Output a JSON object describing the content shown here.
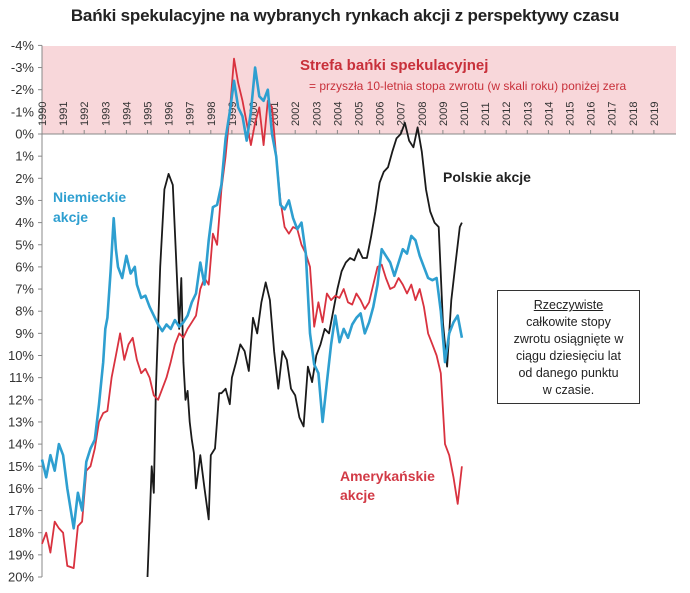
{
  "title": "Bańki spekulacyjne na wybranych rynkach akcji z perspektywy czasu",
  "zone": {
    "title": "Strefa bańki spekulacyjnej",
    "subtitle": "= przyszła  10-letnia stopa zwrotu (w skali roku) poniżej zera",
    "color": "#f8d7da"
  },
  "labels": {
    "german": "Niemieckie",
    "german2": "akcje",
    "american": "Amerykańskie",
    "american2": "akcje",
    "polish": "Polskie akcje"
  },
  "note": {
    "line1": "Rzeczywiste",
    "line2": "całkowite stopy",
    "line3": "zwrotu osiągnięte w",
    "line4": "ciągu dziesięciu  lat",
    "line5": "od danego punktu",
    "line6": "w czasie."
  },
  "colors": {
    "german": "#2e9fd0",
    "american": "#d9323f",
    "polish": "#1a1a1a"
  },
  "chart_data": {
    "type": "line",
    "title": "Bańki spekulacyjne na wybranych rynkach akcji z perspektywy czasu",
    "xlabel": "",
    "ylabel": "",
    "y_inverted": true,
    "ylim": [
      -4,
      20
    ],
    "xlim": [
      1990,
      2019
    ],
    "yticks": [
      "-4%",
      "-3%",
      "-2%",
      "-1%",
      "0%",
      "1%",
      "2%",
      "3%",
      "4%",
      "5%",
      "6%",
      "7%",
      "8%",
      "9%",
      "10%",
      "11%",
      "12%",
      "13%",
      "14%",
      "15%",
      "16%",
      "17%",
      "18%",
      "19%",
      "20%"
    ],
    "xticks": [
      "1990",
      "1991",
      "1992",
      "1993",
      "1994",
      "1995",
      "1996",
      "1997",
      "1998",
      "1999",
      "2000",
      "2001",
      "2002",
      "2003",
      "2004",
      "2005",
      "2006",
      "2007",
      "2008",
      "2009",
      "2010",
      "2011",
      "2012",
      "2013",
      "2014",
      "2015",
      "2016",
      "2017",
      "2018",
      "2019"
    ],
    "shaded_region": {
      "from": -4,
      "to": 0,
      "label": "Strefa bańki spekulacyjnej"
    },
    "series": [
      {
        "name": "Niemieckie akcje",
        "x": [
          1990.0,
          1990.2,
          1990.4,
          1990.6,
          1990.8,
          1991.0,
          1991.2,
          1991.5,
          1991.7,
          1991.9,
          1992.1,
          1992.3,
          1992.5,
          1992.7,
          1992.9,
          1993.0,
          1993.1,
          1993.25,
          1993.4,
          1993.5,
          1993.6,
          1993.8,
          1994.0,
          1994.2,
          1994.4,
          1994.5,
          1994.7,
          1994.9,
          1995.1,
          1995.3,
          1995.5,
          1995.7,
          1995.9,
          1996.1,
          1996.3,
          1996.5,
          1996.7,
          1996.9,
          1997.1,
          1997.3,
          1997.5,
          1997.7,
          1997.9,
          1998.1,
          1998.3,
          1998.5,
          1998.7,
          1998.9,
          1999.1,
          1999.3,
          1999.5,
          1999.7,
          1999.9,
          2000.1,
          2000.3,
          2000.5,
          2000.7,
          2000.9,
          2001.1,
          2001.3,
          2001.5,
          2001.7,
          2001.9,
          2002.1,
          2002.3,
          2002.5,
          2002.7,
          2002.9,
          2003.1,
          2003.3,
          2003.5,
          2003.7,
          2003.9,
          2004.1,
          2004.3,
          2004.5,
          2004.7,
          2004.9,
          2005.1,
          2005.3,
          2005.5,
          2005.7,
          2005.9,
          2006.1,
          2006.3,
          2006.5,
          2006.7,
          2006.9,
          2007.1,
          2007.3,
          2007.5,
          2007.7,
          2007.9,
          2008.1,
          2008.3,
          2008.5,
          2008.7,
          2008.9,
          2009.1,
          2009.3,
          2009.5,
          2009.7,
          2009.9
        ],
        "values": [
          14.7,
          15.5,
          14.5,
          15.2,
          14.0,
          14.5,
          16.0,
          17.8,
          16.2,
          17.0,
          14.8,
          14.2,
          13.8,
          12.2,
          10.3,
          8.8,
          8.3,
          6.2,
          3.8,
          5.2,
          6.0,
          6.5,
          5.5,
          6.3,
          6.0,
          6.8,
          7.4,
          7.3,
          7.8,
          8.2,
          8.6,
          8.9,
          8.6,
          8.8,
          8.4,
          8.7,
          8.5,
          8.2,
          7.6,
          7.2,
          5.8,
          6.8,
          4.8,
          3.3,
          3.2,
          2.3,
          0.2,
          -1.0,
          -2.4,
          -1.2,
          -0.8,
          0.3,
          -1.0,
          -3.0,
          -1.7,
          -1.5,
          -2.0,
          0.0,
          1.0,
          3.2,
          3.4,
          3.0,
          3.8,
          4.3,
          4.0,
          5.4,
          9.0,
          10.4,
          10.8,
          13.0,
          11.2,
          9.5,
          8.2,
          9.4,
          8.8,
          9.2,
          8.6,
          8.3,
          8.1,
          9.0,
          8.5,
          7.8,
          6.8,
          5.2,
          5.5,
          5.8,
          6.4,
          5.8,
          5.2,
          5.4,
          4.6,
          4.8,
          5.5,
          6.0,
          6.5,
          6.6,
          6.5,
          8.0,
          10.3,
          9.0,
          8.5,
          8.2,
          9.2
        ]
      },
      {
        "name": "Amerykańskie akcje",
        "x": [
          1990.0,
          1990.2,
          1990.4,
          1990.6,
          1990.8,
          1991.0,
          1991.2,
          1991.5,
          1991.7,
          1991.9,
          1992.1,
          1992.3,
          1992.5,
          1992.7,
          1992.9,
          1993.1,
          1993.3,
          1993.5,
          1993.7,
          1993.9,
          1994.1,
          1994.3,
          1994.5,
          1994.7,
          1994.9,
          1995.1,
          1995.3,
          1995.5,
          1995.7,
          1995.9,
          1996.1,
          1996.3,
          1996.5,
          1996.7,
          1996.9,
          1997.1,
          1997.3,
          1997.5,
          1997.7,
          1997.9,
          1998.1,
          1998.3,
          1998.5,
          1998.7,
          1998.9,
          1999.1,
          1999.3,
          1999.5,
          1999.7,
          1999.9,
          2000.1,
          2000.3,
          2000.5,
          2000.7,
          2000.9,
          2001.1,
          2001.3,
          2001.5,
          2001.7,
          2001.9,
          2002.1,
          2002.3,
          2002.5,
          2002.7,
          2002.9,
          2003.1,
          2003.3,
          2003.5,
          2003.7,
          2003.9,
          2004.1,
          2004.3,
          2004.5,
          2004.7,
          2004.9,
          2005.1,
          2005.3,
          2005.5,
          2005.7,
          2005.9,
          2006.1,
          2006.3,
          2006.5,
          2006.7,
          2006.9,
          2007.1,
          2007.3,
          2007.5,
          2007.7,
          2007.9,
          2008.1,
          2008.3,
          2008.5,
          2008.7,
          2008.9,
          2009.1,
          2009.3,
          2009.5,
          2009.7,
          2009.9
        ],
        "values": [
          18.5,
          18.0,
          18.9,
          17.5,
          17.8,
          18.0,
          19.5,
          19.6,
          17.7,
          17.5,
          15.2,
          15.0,
          14.2,
          13.0,
          12.6,
          12.5,
          11.0,
          10.0,
          9.0,
          10.2,
          9.5,
          9.2,
          10.2,
          10.8,
          10.6,
          11.0,
          11.8,
          12.0,
          11.5,
          11.0,
          10.3,
          9.5,
          9.0,
          9.2,
          8.8,
          8.5,
          8.2,
          7.0,
          6.5,
          6.8,
          4.5,
          5.0,
          2.5,
          1.0,
          -1.0,
          -3.4,
          -2.3,
          -1.5,
          -0.5,
          0.5,
          -0.5,
          -1.2,
          0.5,
          -1.5,
          -1.2,
          1.0,
          3.0,
          4.2,
          4.5,
          4.2,
          4.3,
          5.0,
          5.4,
          6.0,
          8.7,
          7.6,
          8.5,
          7.2,
          7.5,
          7.3,
          7.4,
          7.0,
          7.6,
          7.7,
          7.2,
          7.5,
          7.9,
          7.6,
          6.8,
          6.0,
          5.9,
          6.5,
          7.0,
          6.9,
          6.5,
          6.8,
          7.2,
          6.8,
          7.5,
          7.0,
          7.8,
          9.0,
          9.5,
          10.0,
          10.8,
          14.0,
          14.5,
          15.5,
          16.7,
          15.0
        ]
      },
      {
        "name": "Polskie akcje",
        "x": [
          1995.0,
          1995.1,
          1995.2,
          1995.3,
          1995.4,
          1995.6,
          1995.8,
          1996.0,
          1996.2,
          1996.35,
          1996.5,
          1996.6,
          1996.7,
          1996.8,
          1996.9,
          1997.0,
          1997.1,
          1997.2,
          1997.3,
          1997.5,
          1997.7,
          1997.9,
          1998.0,
          1998.2,
          1998.4,
          1998.5,
          1998.7,
          1998.9,
          1999.0,
          1999.2,
          1999.4,
          1999.6,
          1999.8,
          2000.0,
          2000.2,
          2000.4,
          2000.6,
          2000.8,
          2001.0,
          2001.2,
          2001.4,
          2001.6,
          2001.8,
          2002.0,
          2002.2,
          2002.4,
          2002.6,
          2002.8,
          2003.0,
          2003.2,
          2003.4,
          2003.6,
          2003.8,
          2004.0,
          2004.2,
          2004.4,
          2004.6,
          2004.8,
          2005.0,
          2005.2,
          2005.4,
          2005.6,
          2005.8,
          2006.0,
          2006.2,
          2006.4,
          2006.6,
          2006.8,
          2007.0,
          2007.2,
          2007.4,
          2007.6,
          2007.8,
          2008.0,
          2008.2,
          2008.4,
          2008.6,
          2008.8,
          2009.0,
          2009.2,
          2009.4,
          2009.6,
          2009.8,
          2009.9
        ],
        "values": [
          20.0,
          17.5,
          15.0,
          16.2,
          11.5,
          6.0,
          2.5,
          1.8,
          2.3,
          5.5,
          8.8,
          6.5,
          10.3,
          12.0,
          11.6,
          13.0,
          13.8,
          14.4,
          16.0,
          14.5,
          16.0,
          17.4,
          14.5,
          14.2,
          11.7,
          11.7,
          11.5,
          12.2,
          11.0,
          10.3,
          9.5,
          9.8,
          10.7,
          8.3,
          9.0,
          7.6,
          6.7,
          7.5,
          9.8,
          11.5,
          9.8,
          10.2,
          11.5,
          11.8,
          12.8,
          13.2,
          10.5,
          11.2,
          10.0,
          9.5,
          8.8,
          9.0,
          8.0,
          7.0,
          6.2,
          5.8,
          5.6,
          5.7,
          5.2,
          5.6,
          5.6,
          4.6,
          3.5,
          2.2,
          1.7,
          1.5,
          0.8,
          0.2,
          0.0,
          -0.5,
          0.3,
          0.6,
          -0.3,
          0.8,
          2.5,
          3.5,
          4.0,
          4.2,
          8.5,
          10.5,
          7.5,
          5.8,
          4.2,
          4.0
        ]
      }
    ]
  }
}
